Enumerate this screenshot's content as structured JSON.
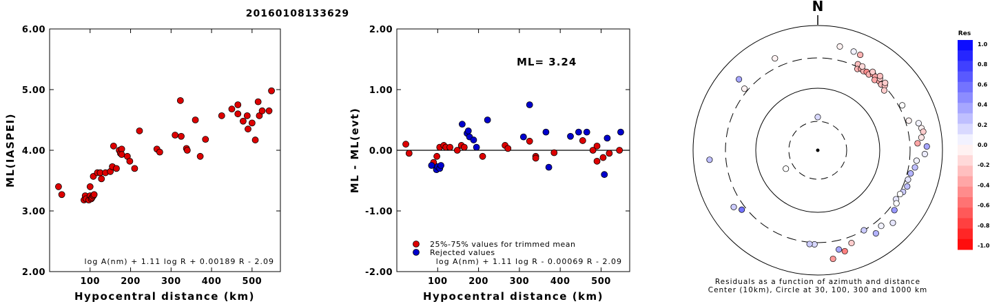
{
  "title": "20160108133629",
  "chart_data": [
    {
      "type": "scatter",
      "xlabel": "Hypocentral distance (km)",
      "ylabel": "ML(IASPEI)",
      "xlim": [
        0,
        570
      ],
      "ylim": [
        2.0,
        6.0
      ],
      "xticks": [
        100,
        200,
        300,
        400,
        500
      ],
      "xtick_labels": [
        "100",
        "200",
        "300",
        "400",
        "500"
      ],
      "yticks": [
        2.0,
        3.0,
        4.0,
        5.0,
        6.0
      ],
      "ytick_labels": [
        "2.00",
        "3.00",
        "4.00",
        "5.00",
        "6.00"
      ],
      "annotation": "log A(nm) + 1.11 log R + 0.00189 R - 2.09",
      "marker_color": "#dd0000",
      "points": [
        [
          22,
          3.4
        ],
        [
          30,
          3.27
        ],
        [
          85,
          3.18
        ],
        [
          88,
          3.25
        ],
        [
          90,
          3.2
        ],
        [
          97,
          3.18
        ],
        [
          100,
          3.4
        ],
        [
          100,
          3.25
        ],
        [
          103,
          3.2
        ],
        [
          105,
          3.22
        ],
        [
          108,
          3.25
        ],
        [
          110,
          3.27
        ],
        [
          108,
          3.57
        ],
        [
          118,
          3.63
        ],
        [
          125,
          3.63
        ],
        [
          128,
          3.53
        ],
        [
          138,
          3.63
        ],
        [
          150,
          3.65
        ],
        [
          155,
          3.73
        ],
        [
          158,
          4.07
        ],
        [
          165,
          3.7
        ],
        [
          172,
          4.0
        ],
        [
          175,
          3.95
        ],
        [
          178,
          4.02
        ],
        [
          178,
          3.93
        ],
        [
          192,
          3.9
        ],
        [
          198,
          3.82
        ],
        [
          210,
          3.7
        ],
        [
          222,
          4.32
        ],
        [
          265,
          4.02
        ],
        [
          272,
          3.97
        ],
        [
          310,
          4.25
        ],
        [
          323,
          4.82
        ],
        [
          325,
          4.23
        ],
        [
          338,
          4.03
        ],
        [
          340,
          4.0
        ],
        [
          360,
          4.5
        ],
        [
          372,
          3.9
        ],
        [
          385,
          4.18
        ],
        [
          425,
          4.57
        ],
        [
          450,
          4.68
        ],
        [
          465,
          4.75
        ],
        [
          465,
          4.6
        ],
        [
          478,
          4.48
        ],
        [
          488,
          4.57
        ],
        [
          490,
          4.35
        ],
        [
          500,
          4.45
        ],
        [
          508,
          4.17
        ],
        [
          515,
          4.8
        ],
        [
          518,
          4.57
        ],
        [
          525,
          4.65
        ],
        [
          542,
          4.65
        ],
        [
          548,
          4.98
        ]
      ]
    },
    {
      "type": "scatter",
      "xlabel": "Hypocentral distance (km)",
      "ylabel": "ML - ML(evt)",
      "xlim": [
        0,
        570
      ],
      "ylim": [
        -2.0,
        2.0
      ],
      "xticks": [
        100,
        200,
        300,
        400,
        500
      ],
      "xtick_labels": [
        "100",
        "200",
        "300",
        "400",
        "500"
      ],
      "yticks": [
        -2.0,
        -1.0,
        0.0,
        1.0,
        2.0
      ],
      "ytick_labels": [
        "-2.00",
        "-1.00",
        "0.00",
        "1.00",
        "2.00"
      ],
      "ml_text": "ML= 3.24",
      "annotation": "log A(nm) + 1.11 log R - 0.00069 R - 2.09",
      "legend": [
        {
          "label": "25%-75% values for trimmed mean",
          "color": "#dd0000"
        },
        {
          "label": "Rejected values",
          "color": "#0000cc"
        }
      ],
      "series": [
        {
          "name": "25%-75% values for trimmed mean",
          "color": "#dd0000",
          "points": [
            [
              22,
              0.1
            ],
            [
              30,
              -0.05
            ],
            [
              90,
              -0.2
            ],
            [
              98,
              -0.1
            ],
            [
              105,
              0.05
            ],
            [
              115,
              0.08
            ],
            [
              120,
              0.05
            ],
            [
              130,
              0.05
            ],
            [
              148,
              0.0
            ],
            [
              158,
              0.08
            ],
            [
              165,
              0.05
            ],
            [
              210,
              -0.1
            ],
            [
              265,
              0.08
            ],
            [
              272,
              0.03
            ],
            [
              325,
              0.15
            ],
            [
              340,
              -0.1
            ],
            [
              340,
              -0.13
            ],
            [
              385,
              -0.04
            ],
            [
              455,
              0.16
            ],
            [
              480,
              0.0
            ],
            [
              490,
              0.07
            ],
            [
              490,
              -0.18
            ],
            [
              505,
              -0.12
            ],
            [
              520,
              -0.05
            ],
            [
              545,
              0.0
            ]
          ]
        },
        {
          "name": "Rejected values",
          "color": "#0000cc",
          "points": [
            [
              85,
              -0.25
            ],
            [
              97,
              -0.32
            ],
            [
              100,
              -0.27
            ],
            [
              105,
              -0.3
            ],
            [
              108,
              -0.25
            ],
            [
              160,
              0.43
            ],
            [
              172,
              0.28
            ],
            [
              175,
              0.32
            ],
            [
              178,
              0.22
            ],
            [
              188,
              0.17
            ],
            [
              195,
              0.05
            ],
            [
              222,
              0.5
            ],
            [
              310,
              0.22
            ],
            [
              325,
              0.75
            ],
            [
              365,
              0.3
            ],
            [
              372,
              -0.28
            ],
            [
              425,
              0.23
            ],
            [
              445,
              0.3
            ],
            [
              465,
              0.3
            ],
            [
              508,
              -0.4
            ],
            [
              515,
              0.2
            ],
            [
              548,
              0.3
            ]
          ]
        }
      ]
    },
    {
      "type": "scatter",
      "subtype": "polar",
      "north_label": "N",
      "caption_lines": [
        "Residuals as a function of azimuth and distance",
        "Center (10km), Circle at 30, 100, 300 and 1000 km"
      ],
      "rings_km": [
        30,
        100,
        300,
        1000
      ],
      "colorbar": {
        "title": "Res",
        "ticks": [
          "1.0",
          "0.8",
          "0.6",
          "0.4",
          "0.2",
          "0.0",
          "-0.2",
          "-0.4",
          "-0.6",
          "-0.8",
          "-1.0"
        ]
      },
      "points_azimuth_deg_distance_km_residual": [
        [
          12,
          500,
          -0.05
        ],
        [
          20,
          480,
          0.05
        ],
        [
          62,
          340,
          0.0
        ],
        [
          72,
          340,
          -0.05
        ],
        [
          75,
          470,
          0.05
        ],
        [
          78,
          500,
          -0.05
        ],
        [
          80,
          520,
          -0.2
        ],
        [
          83,
          470,
          -0.1
        ],
        [
          86,
          400,
          -0.35
        ],
        [
          88,
          560,
          0.35
        ],
        [
          92,
          520,
          0.08
        ],
        [
          96,
          390,
          0.05
        ],
        [
          100,
          380,
          0.25
        ],
        [
          104,
          340,
          0.3
        ],
        [
          108,
          330,
          0.1
        ],
        [
          112,
          350,
          0.25
        ],
        [
          116,
          330,
          0.2
        ],
        [
          118,
          310,
          0.0
        ],
        [
          122,
          300,
          0.1
        ],
        [
          124,
          330,
          0.0
        ],
        [
          128,
          360,
          0.4
        ],
        [
          134,
          470,
          0.1
        ],
        [
          140,
          380,
          0.05
        ],
        [
          145,
          420,
          0.3
        ],
        [
          150,
          300,
          0.2
        ],
        [
          160,
          380,
          -0.2
        ],
        [
          165,
          470,
          -0.5
        ],
        [
          168,
          420,
          0.35
        ],
        [
          172,
          570,
          -0.4
        ],
        [
          182,
          320,
          0.15
        ],
        [
          185,
          320,
          0.2
        ],
        [
          232,
          350,
          0.55
        ],
        [
          236,
          420,
          0.2
        ],
        [
          265,
          550,
          0.25
        ],
        [
          240,
          40,
          0.0
        ],
        [
          0,
          35,
          0.15
        ],
        [
          310,
          340,
          -0.05
        ],
        [
          312,
          500,
          0.35
        ],
        [
          335,
          420,
          -0.05
        ],
        [
          25,
          330,
          -0.25
        ],
        [
          26,
          280,
          -0.3
        ],
        [
          24,
          470,
          -0.3
        ],
        [
          28,
          300,
          -0.35
        ],
        [
          30,
          290,
          -0.3
        ],
        [
          32,
          300,
          -0.45
        ],
        [
          34,
          290,
          -0.3
        ],
        [
          36,
          320,
          -0.4
        ],
        [
          38,
          310,
          -0.35
        ],
        [
          39,
          280,
          -0.35
        ],
        [
          42,
          300,
          -0.35
        ],
        [
          44,
          290,
          -0.25
        ],
        [
          46,
          310,
          -0.25
        ],
        [
          48,
          270,
          -0.2
        ],
        [
          41,
          330,
          -0.2
        ],
        [
          35,
          340,
          -0.2
        ],
        [
          28,
          330,
          -0.15
        ],
        [
          40,
          355,
          -0.25
        ],
        [
          45,
          335,
          -0.2
        ]
      ]
    }
  ]
}
